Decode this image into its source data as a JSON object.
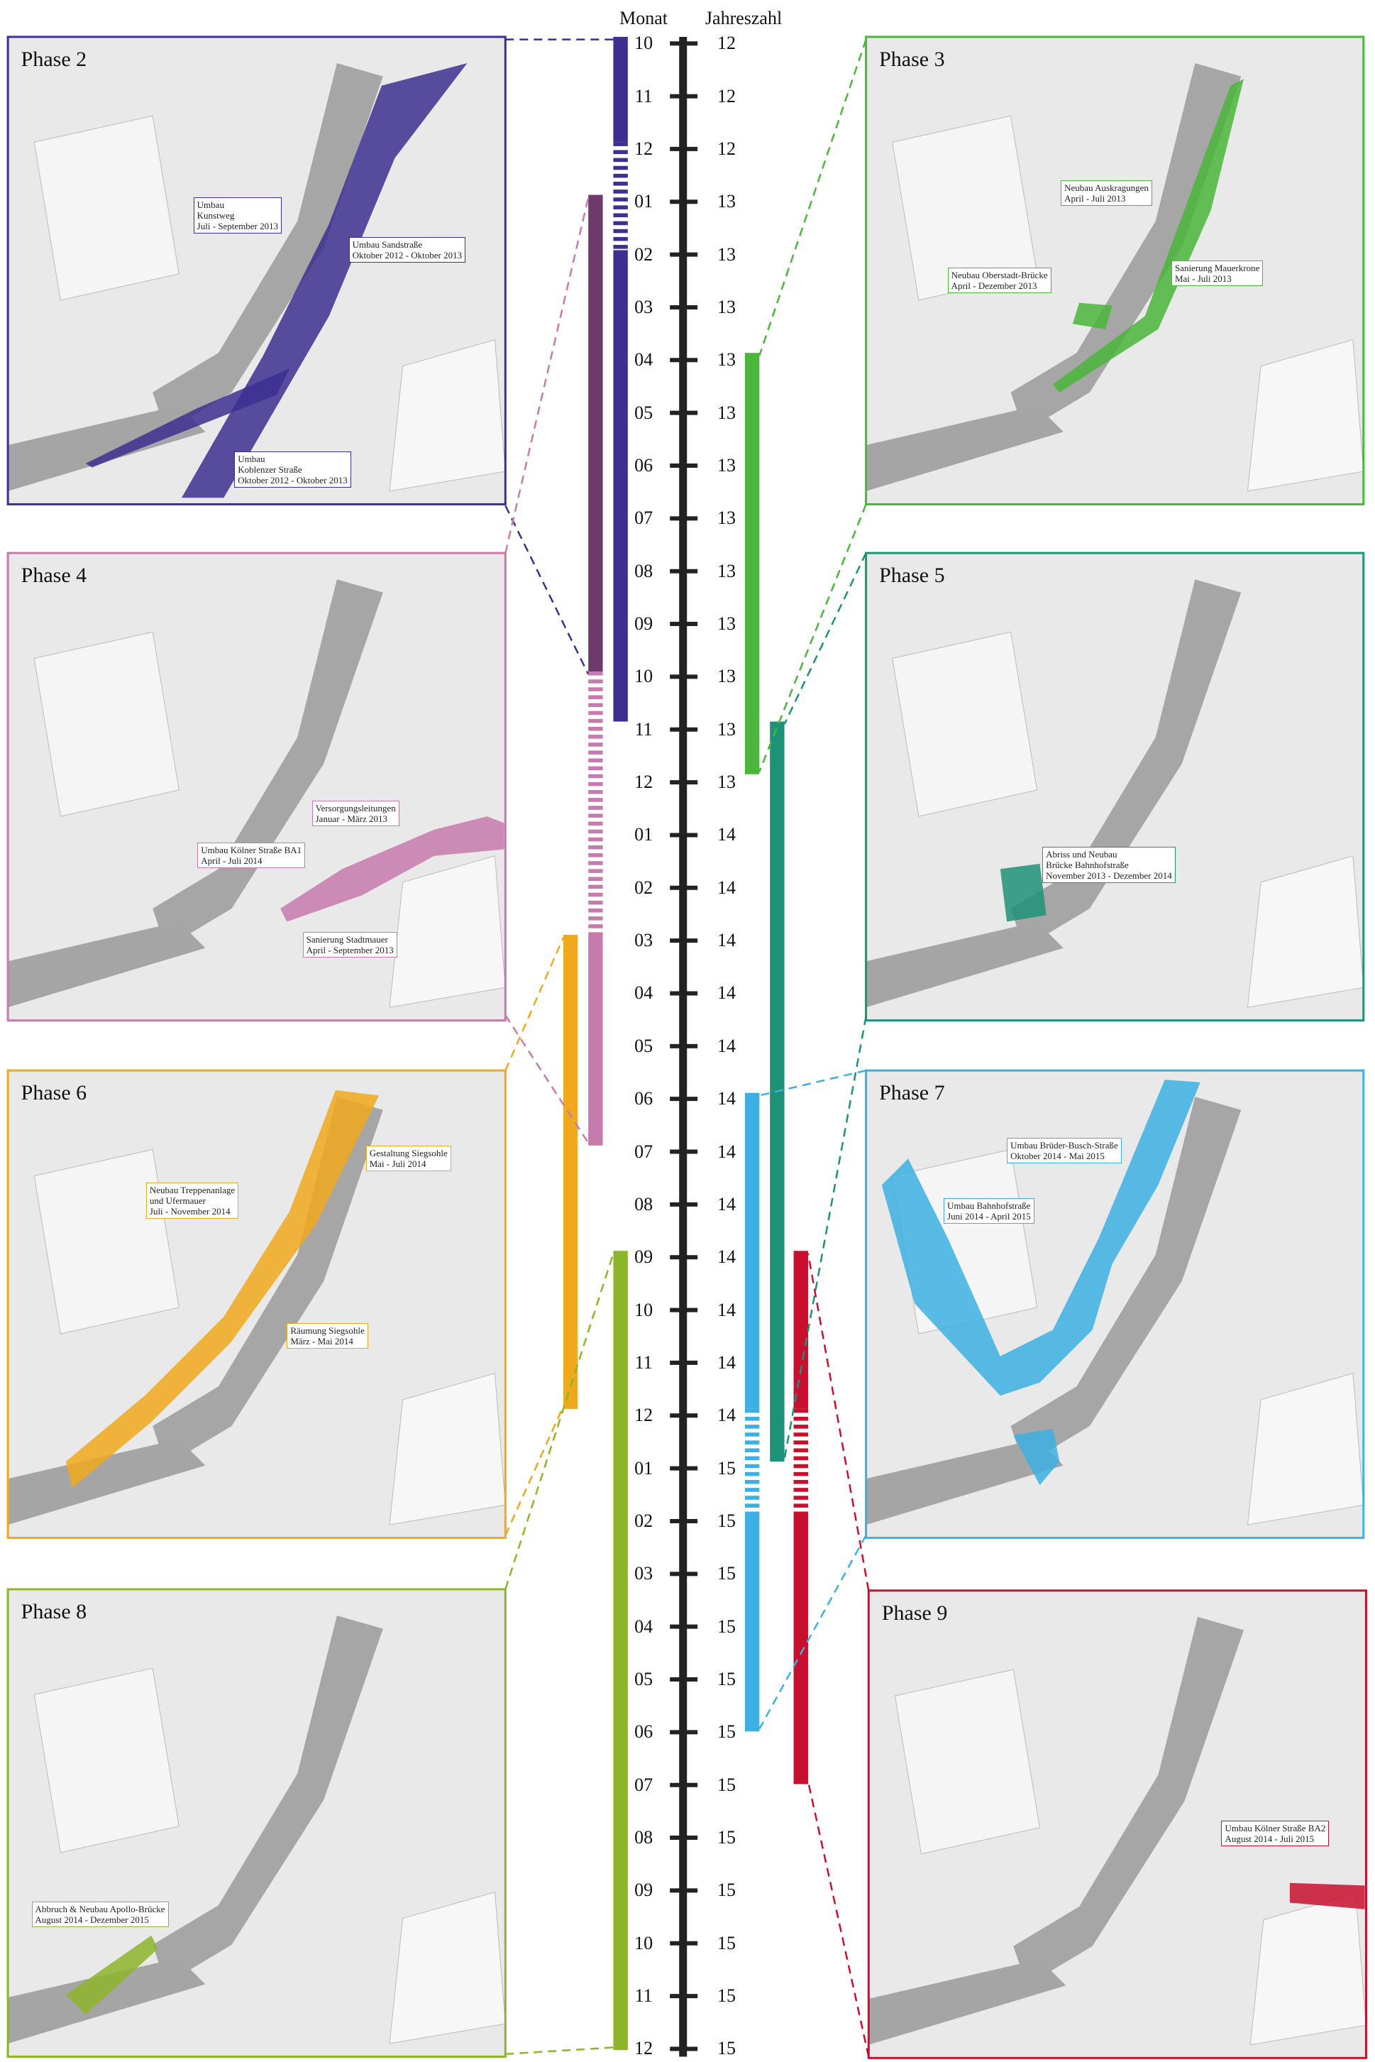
{
  "timeline": {
    "header": {
      "month": "Monat",
      "year": "Jahreszahl"
    },
    "rows": [
      [
        "10",
        "12"
      ],
      [
        "11",
        "12"
      ],
      [
        "12",
        "12"
      ],
      [
        "01",
        "13"
      ],
      [
        "02",
        "13"
      ],
      [
        "03",
        "13"
      ],
      [
        "04",
        "13"
      ],
      [
        "05",
        "13"
      ],
      [
        "06",
        "13"
      ],
      [
        "07",
        "13"
      ],
      [
        "08",
        "13"
      ],
      [
        "09",
        "13"
      ],
      [
        "10",
        "13"
      ],
      [
        "11",
        "13"
      ],
      [
        "12",
        "13"
      ],
      [
        "01",
        "14"
      ],
      [
        "02",
        "14"
      ],
      [
        "03",
        "14"
      ],
      [
        "04",
        "14"
      ],
      [
        "05",
        "14"
      ],
      [
        "06",
        "14"
      ],
      [
        "07",
        "14"
      ],
      [
        "08",
        "14"
      ],
      [
        "09",
        "14"
      ],
      [
        "10",
        "14"
      ],
      [
        "11",
        "14"
      ],
      [
        "12",
        "14"
      ],
      [
        "01",
        "15"
      ],
      [
        "02",
        "15"
      ],
      [
        "03",
        "15"
      ],
      [
        "04",
        "15"
      ],
      [
        "05",
        "15"
      ],
      [
        "06",
        "15"
      ],
      [
        "07",
        "15"
      ],
      [
        "08",
        "15"
      ],
      [
        "09",
        "15"
      ],
      [
        "10",
        "15"
      ],
      [
        "11",
        "15"
      ],
      [
        "12",
        "15"
      ]
    ]
  },
  "phases": [
    {
      "title": "Phase 2",
      "labels": [
        [
          "Umbau",
          "Kunstweg",
          "Juli - September 2013"
        ],
        [
          "Umbau Sandstraße",
          "Oktober 2012 - Oktober 2013"
        ],
        [
          "Umbau",
          "Koblenzer Straße",
          "Oktober 2012 - Oktober 2013"
        ]
      ]
    },
    {
      "title": "Phase 3",
      "labels": [
        [
          "Neubau Auskragungen",
          "April - Juli 2013"
        ],
        [
          "Neubau Oberstadt-Brücke",
          "April - Dezember 2013"
        ],
        [
          "Sanierung Mauerkrone",
          "Mai - Juli 2013"
        ]
      ]
    },
    {
      "title": "Phase 4",
      "labels": [
        [
          "Versorgungsleitungen",
          "Januar - März 2013"
        ],
        [
          "Umbau Kölner Straße BA1",
          "April - Juli 2014"
        ],
        [
          "Sanierung Stadtmauer",
          "April - September 2013"
        ]
      ]
    },
    {
      "title": "Phase 5",
      "labels": [
        [
          "Abriss und Neubau",
          "Brücke Bahnhofstraße",
          "November 2013 - Dezember 2014"
        ]
      ]
    },
    {
      "title": "Phase 6",
      "labels": [
        [
          "Neubau Treppenanlage",
          "und Ufermauer",
          "Juli - November 2014"
        ],
        [
          "Gestaltung Siegsohle",
          "Mai - Juli 2014"
        ],
        [
          "Räumung Siegsohle",
          "März - Mai 2014"
        ]
      ]
    },
    {
      "title": "Phase 7",
      "labels": [
        [
          "Umbau Brüder-Busch-Straße",
          "Oktober 2014 - Mai 2015"
        ],
        [
          "Umbau Bahnhofstraße",
          "Juni 2014 - April 2015"
        ]
      ]
    },
    {
      "title": "Phase 8",
      "labels": [
        [
          "Abbruch & Neubau Apollo-Brücke",
          "August 2014 - Dezember 2015"
        ]
      ]
    },
    {
      "title": "Phase 9",
      "labels": [
        [
          "Umbau Kölner Straße BA2",
          "August 2014 - Juli 2015"
        ]
      ]
    }
  ]
}
